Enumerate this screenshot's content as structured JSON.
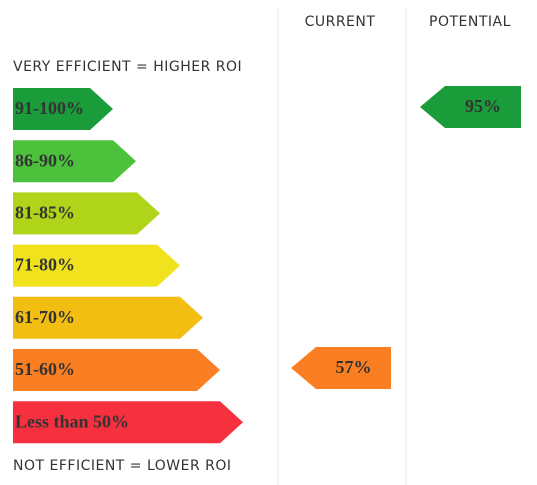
{
  "header": {
    "columns": [
      "CURRENT",
      "POTENTIAL"
    ]
  },
  "top_label": "VERY EFFICIENT = HIGHER ROI",
  "bottom_label": "NOT EFFICIENT = LOWER ROI",
  "bands": [
    {
      "label": "91-100%",
      "color": "#1a9c3a"
    },
    {
      "label": "86-90%",
      "color": "#4cc23c"
    },
    {
      "label": "81-85%",
      "color": "#b0d41a"
    },
    {
      "label": "71-80%",
      "color": "#f0e21c"
    },
    {
      "label": "61-70%",
      "color": "#f2be12"
    },
    {
      "label": "51-60%",
      "color": "#fa7f22"
    },
    {
      "label": "Less than 50%",
      "color": "#f7303f"
    }
  ],
  "current": {
    "label": "57%",
    "color": "#fa7f22"
  },
  "potential": {
    "label": "95%",
    "color": "#1a9c3a"
  }
}
